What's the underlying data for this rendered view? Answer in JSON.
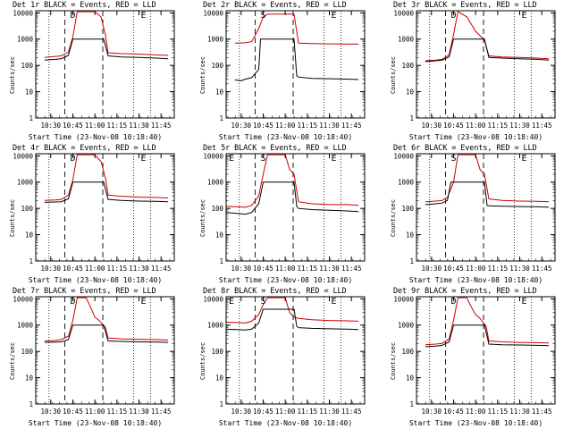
{
  "chart_data": [
    {
      "type": "line",
      "title": "Det 1r BLACK = Events, RED = LLD",
      "xlabel": "Start Time (23-Nov-08 10:18:40)",
      "ylabel": "Counts/sec",
      "x_ticks": [
        "10:30",
        "10:45",
        "11:00",
        "11:15",
        "11:30",
        "11:45"
      ],
      "y_ticks": [
        "1",
        "10",
        "100",
        "1000",
        "10000"
      ],
      "ylim": [
        1,
        12000
      ],
      "ylog": true,
      "markers": [
        "",
        "D",
        "",
        "",
        "",
        "E"
      ],
      "series": [
        {
          "color": "#cc0000",
          "x": [
            10.43,
            10.55,
            10.62,
            10.7,
            10.75,
            10.8,
            10.9,
            11.0,
            11.07,
            11.12,
            11.15,
            11.3,
            11.5,
            11.7,
            11.83
          ],
          "y": [
            200,
            220,
            230,
            320,
            1200,
            11000,
            11000,
            11000,
            7000,
            1400,
            300,
            280,
            270,
            250,
            240
          ]
        },
        {
          "color": "#000000",
          "x": [
            10.43,
            10.55,
            10.62,
            10.7,
            10.75,
            11.1,
            11.15,
            11.3,
            11.5,
            11.7,
            11.83
          ],
          "y": [
            160,
            170,
            180,
            240,
            1000,
            1000,
            230,
            210,
            200,
            190,
            180
          ]
        }
      ]
    },
    {
      "type": "line",
      "title": "Det 2r BLACK = Events, RED = LLD",
      "xlabel": "Start Time (23-Nov-08 10:18:40)",
      "ylabel": "Counts/sec",
      "x_ticks": [
        "10:30",
        "10:45",
        "11:00",
        "11:15",
        "11:30",
        "11:45"
      ],
      "y_ticks": [
        "1",
        "10",
        "100",
        "1000",
        "10000"
      ],
      "ylim": [
        1,
        12000
      ],
      "ylog": true,
      "markers": [
        "",
        "S",
        "",
        "",
        "",
        "E"
      ],
      "series": [
        {
          "color": "#cc0000",
          "x": [
            10.43,
            10.55,
            10.62,
            10.7,
            10.75,
            10.8,
            11.1,
            11.15,
            11.3,
            11.5,
            11.7,
            11.83
          ],
          "y": [
            700,
            720,
            800,
            2500,
            7000,
            9000,
            9000,
            700,
            680,
            660,
            650,
            640
          ]
        },
        {
          "color": "#000000",
          "x": [
            10.43,
            10.5,
            10.55,
            10.62,
            10.7,
            10.72,
            11.1,
            11.13,
            11.15,
            11.3,
            11.5,
            11.7,
            11.83
          ],
          "y": [
            28,
            26,
            30,
            34,
            70,
            1000,
            1000,
            40,
            36,
            32,
            31,
            30,
            29
          ]
        }
      ]
    },
    {
      "type": "line",
      "title": "Det 3r BLACK = Events, RED = LLD",
      "xlabel": "Start Time (23-Nov-08 10:18:40)",
      "ylabel": "Counts/sec",
      "x_ticks": [
        "10:30",
        "10:45",
        "11:00",
        "11:15",
        "11:30",
        "11:45"
      ],
      "y_ticks": [
        "1",
        "10",
        "100",
        "1000",
        "10000"
      ],
      "ylim": [
        1,
        12000
      ],
      "ylog": true,
      "markers": [
        "",
        "D",
        "",
        "",
        "",
        "E"
      ],
      "series": [
        {
          "color": "#cc0000",
          "x": [
            10.43,
            10.55,
            10.62,
            10.7,
            10.75,
            10.8,
            10.9,
            11.0,
            11.1,
            11.15,
            11.3,
            11.5,
            11.7,
            11.83
          ],
          "y": [
            150,
            160,
            170,
            250,
            1500,
            11000,
            7000,
            2000,
            900,
            230,
            210,
            200,
            190,
            180
          ]
        },
        {
          "color": "#000000",
          "x": [
            10.43,
            10.55,
            10.62,
            10.7,
            10.75,
            11.1,
            11.15,
            11.3,
            11.5,
            11.7,
            11.83
          ],
          "y": [
            140,
            150,
            160,
            210,
            1000,
            1000,
            200,
            190,
            180,
            170,
            160
          ]
        }
      ]
    },
    {
      "type": "line",
      "title": "Det 4r BLACK = Events, RED = LLD",
      "xlabel": "Start Time (23-Nov-08 10:18:40)",
      "ylabel": "Counts/sec",
      "x_ticks": [
        "10:30",
        "10:45",
        "11:00",
        "11:15",
        "11:30",
        "11:45"
      ],
      "y_ticks": [
        "1",
        "10",
        "100",
        "1000",
        "10000"
      ],
      "ylim": [
        1,
        12000
      ],
      "ylog": true,
      "markers": [
        "",
        "D",
        "",
        "",
        "",
        "E"
      ],
      "series": [
        {
          "color": "#cc0000",
          "x": [
            10.43,
            10.55,
            10.62,
            10.7,
            10.75,
            10.8,
            10.9,
            11.0,
            11.07,
            11.12,
            11.15,
            11.3,
            11.5,
            11.7,
            11.83
          ],
          "y": [
            200,
            210,
            220,
            320,
            1200,
            11000,
            11000,
            11000,
            6000,
            1400,
            320,
            290,
            270,
            260,
            250
          ]
        },
        {
          "color": "#000000",
          "x": [
            10.43,
            10.55,
            10.62,
            10.7,
            10.75,
            11.1,
            11.15,
            11.3,
            11.5,
            11.7,
            11.83
          ],
          "y": [
            170,
            175,
            180,
            230,
            1000,
            1000,
            220,
            200,
            190,
            185,
            180
          ]
        }
      ]
    },
    {
      "type": "line",
      "title": "Det 5r BLACK = Events, RED = LLD",
      "xlabel": "Start Time (23-Nov-08 10:18:40)",
      "ylabel": "Counts/sec",
      "x_ticks": [
        "10:30",
        "10:45",
        "11:00",
        "11:15",
        "11:30",
        "11:45"
      ],
      "y_ticks": [
        "1",
        "10",
        "100",
        "1000",
        "10000"
      ],
      "ylim": [
        1,
        12000
      ],
      "ylog": true,
      "markers": [
        "E",
        "S",
        "",
        "",
        "",
        "E"
      ],
      "series": [
        {
          "color": "#cc0000",
          "x": [
            10.33,
            10.45,
            10.55,
            10.62,
            10.7,
            10.75,
            10.8,
            11.0,
            11.05,
            11.1,
            11.15,
            11.3,
            11.5,
            11.7,
            11.83
          ],
          "y": [
            120,
            115,
            110,
            130,
            300,
            2000,
            11000,
            11000,
            3000,
            2000,
            180,
            150,
            140,
            140,
            130
          ]
        },
        {
          "color": "#000000",
          "x": [
            10.33,
            10.45,
            10.55,
            10.62,
            10.7,
            10.75,
            11.1,
            11.13,
            11.15,
            11.3,
            11.5,
            11.7,
            11.83
          ],
          "y": [
            70,
            65,
            60,
            70,
            150,
            1000,
            1000,
            120,
            100,
            90,
            85,
            80,
            75
          ]
        }
      ]
    },
    {
      "type": "line",
      "title": "Det 6r BLACK = Events, RED = LLD",
      "xlabel": "Start Time (23-Nov-08 10:18:40)",
      "ylabel": "Counts/sec",
      "x_ticks": [
        "10:30",
        "10:45",
        "11:00",
        "11:15",
        "11:30",
        "11:45"
      ],
      "y_ticks": [
        "1",
        "10",
        "100",
        "1000",
        "10000"
      ],
      "ylim": [
        1,
        12000
      ],
      "ylog": true,
      "markers": [
        "",
        "S",
        "",
        "",
        "",
        "E"
      ],
      "series": [
        {
          "color": "#cc0000",
          "x": [
            10.43,
            10.55,
            10.62,
            10.68,
            10.75,
            10.8,
            11.0,
            11.05,
            11.1,
            11.15,
            11.3,
            11.5,
            11.7,
            11.83
          ],
          "y": [
            180,
            190,
            200,
            260,
            1000,
            11000,
            11000,
            3000,
            2000,
            230,
            200,
            190,
            185,
            180
          ]
        },
        {
          "color": "#000000",
          "x": [
            10.43,
            10.55,
            10.62,
            10.68,
            10.72,
            11.1,
            11.13,
            11.15,
            11.3,
            11.5,
            11.7,
            11.83
          ],
          "y": [
            140,
            150,
            160,
            200,
            1000,
            1000,
            130,
            125,
            120,
            118,
            115,
            110
          ]
        }
      ]
    },
    {
      "type": "line",
      "title": "Det 7r BLACK = Events, RED = LLD",
      "xlabel": "Start Time (23-Nov-08 10:18:40)",
      "ylabel": "Counts/sec",
      "x_ticks": [
        "10:30",
        "10:45",
        "11:00",
        "11:15",
        "11:30",
        "11:45"
      ],
      "y_ticks": [
        "1",
        "10",
        "100",
        "1000",
        "10000"
      ],
      "ylim": [
        1,
        12000
      ],
      "ylog": true,
      "markers": [
        "",
        "D",
        "",
        "",
        "",
        "E"
      ],
      "series": [
        {
          "color": "#cc0000",
          "x": [
            10.43,
            10.55,
            10.62,
            10.7,
            10.75,
            10.8,
            10.9,
            10.95,
            11.0,
            11.05,
            11.12,
            11.15,
            11.3,
            11.5,
            11.7,
            11.83
          ],
          "y": [
            250,
            260,
            280,
            380,
            1500,
            11000,
            11000,
            5000,
            2000,
            1500,
            800,
            320,
            300,
            290,
            280,
            270
          ]
        },
        {
          "color": "#000000",
          "x": [
            10.43,
            10.55,
            10.62,
            10.7,
            10.75,
            11.1,
            11.15,
            11.3,
            11.5,
            11.7,
            11.83
          ],
          "y": [
            220,
            225,
            230,
            280,
            1000,
            1000,
            250,
            240,
            230,
            225,
            220
          ]
        }
      ]
    },
    {
      "type": "line",
      "title": "Det 8r BLACK = Events, RED = LLD",
      "xlabel": "Start Time (23-Nov-08 10:18:40)",
      "ylabel": "Counts/sec",
      "x_ticks": [
        "10:30",
        "10:45",
        "11:00",
        "11:15",
        "11:30",
        "11:45"
      ],
      "y_ticks": [
        "1",
        "10",
        "100",
        "1000",
        "10000"
      ],
      "ylim": [
        1,
        12000
      ],
      "ylog": true,
      "markers": [
        "E",
        "S",
        "",
        "",
        "",
        "E"
      ],
      "series": [
        {
          "color": "#cc0000",
          "x": [
            10.33,
            10.45,
            10.55,
            10.62,
            10.7,
            10.75,
            10.8,
            11.0,
            11.05,
            11.1,
            11.15,
            11.3,
            11.5,
            11.7,
            11.83
          ],
          "y": [
            1300,
            1250,
            1200,
            1400,
            2500,
            6000,
            11000,
            11000,
            3000,
            2000,
            1800,
            1600,
            1500,
            1450,
            1400
          ]
        },
        {
          "color": "#000000",
          "x": [
            10.33,
            10.45,
            10.55,
            10.62,
            10.7,
            10.75,
            11.1,
            11.13,
            11.15,
            11.3,
            11.5,
            11.7,
            11.83
          ],
          "y": [
            700,
            680,
            650,
            700,
            1200,
            4000,
            4000,
            900,
            800,
            750,
            720,
            700,
            680
          ]
        }
      ]
    },
    {
      "type": "line",
      "title": "Det 9r BLACK = Events, RED = LLD",
      "xlabel": "Start Time (23-Nov-08 10:18:40)",
      "ylabel": "Counts/sec",
      "x_ticks": [
        "10:30",
        "10:45",
        "11:00",
        "11:15",
        "11:30",
        "11:45"
      ],
      "y_ticks": [
        "1",
        "10",
        "100",
        "1000",
        "10000"
      ],
      "ylim": [
        1,
        12000
      ],
      "ylog": true,
      "markers": [
        "",
        "D",
        "",
        "",
        "",
        "E"
      ],
      "series": [
        {
          "color": "#cc0000",
          "x": [
            10.43,
            10.55,
            10.62,
            10.7,
            10.75,
            10.8,
            10.9,
            10.95,
            11.0,
            11.05,
            11.12,
            11.15,
            11.3,
            11.5,
            11.7,
            11.83
          ],
          "y": [
            180,
            190,
            200,
            300,
            1500,
            11000,
            11000,
            5000,
            2500,
            1800,
            900,
            250,
            230,
            220,
            215,
            210
          ]
        },
        {
          "color": "#000000",
          "x": [
            10.43,
            10.55,
            10.62,
            10.7,
            10.75,
            11.1,
            11.15,
            11.3,
            11.5,
            11.7,
            11.83
          ],
          "y": [
            150,
            160,
            170,
            230,
            1000,
            1000,
            190,
            180,
            175,
            170,
            165
          ]
        }
      ]
    }
  ]
}
